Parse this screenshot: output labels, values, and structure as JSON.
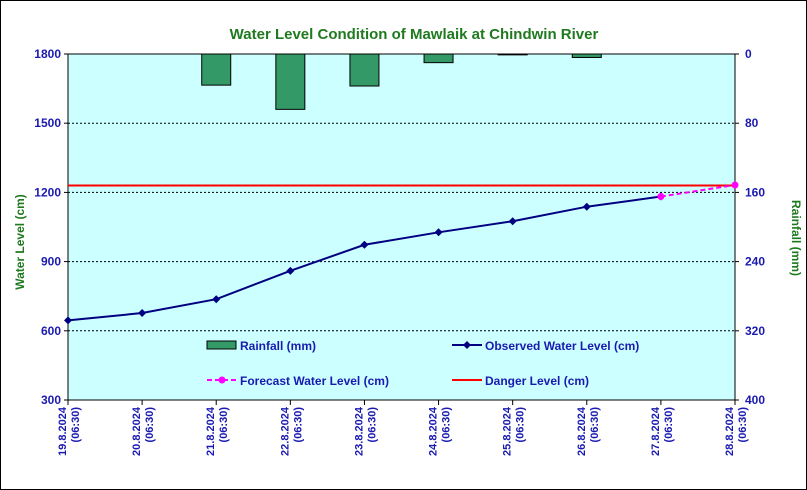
{
  "chart_data": {
    "type": "bar+line",
    "title": "Water Level Condition of Mawlaik at Chindwin River",
    "ylabel": "Water Level (cm)",
    "y2label": "Rainfall (mm)",
    "ylim": [
      300,
      1800
    ],
    "y2lim": [
      0,
      400
    ],
    "y2_inverted": true,
    "yticks": [
      300,
      600,
      900,
      1200,
      1500,
      1800
    ],
    "y2ticks": [
      0,
      80,
      160,
      240,
      320,
      400
    ],
    "categories": [
      "19.8.2024 (06:30)",
      "20.8.2024 (06:30)",
      "21.8.2024 (06:30)",
      "22.8.2024 (06:30)",
      "23.8.2024 (06:30)",
      "24.8.2024 (06:30)",
      "25.8.2024 (06:30)",
      "26.8.2024 (06:30)",
      "27.8.2024 (06:30)",
      "28.8.2024 (06:30)"
    ],
    "category_lines": [
      [
        "19.8.2024",
        "(06:30)"
      ],
      [
        "20.8.2024",
        "(06:30)"
      ],
      [
        "21.8.2024",
        "(06:30)"
      ],
      [
        "22.8.2024",
        "(06:30)"
      ],
      [
        "23.8.2024",
        "(06:30)"
      ],
      [
        "24.8.2024",
        "(06:30)"
      ],
      [
        "25.8.2024",
        "(06:30)"
      ],
      [
        "26.8.2024",
        "(06:30)"
      ],
      [
        "27.8.2024",
        "(06:30)"
      ],
      [
        "28.8.2024",
        "(06:30)"
      ]
    ],
    "rainfall": [
      0,
      0,
      36,
      64,
      37,
      10,
      1,
      4,
      0,
      0
    ],
    "observed": [
      645,
      677,
      737,
      860,
      973,
      1027,
      1075,
      1138,
      1182,
      null
    ],
    "forecast": [
      null,
      null,
      null,
      null,
      null,
      null,
      null,
      null,
      1182,
      1232
    ],
    "danger_level": 1230,
    "legend": {
      "rainfall": "Rainfall (mm)",
      "observed": "Observed Water Level (cm)",
      "forecast": "Forecast Water Level (cm)",
      "danger": "Danger Level (cm)"
    },
    "grid": true,
    "colors": {
      "plot_bg": "#ccffff",
      "rainfall": "#339966",
      "observed": "#000080",
      "forecast": "#ff00ff",
      "danger": "#ff0000"
    }
  }
}
